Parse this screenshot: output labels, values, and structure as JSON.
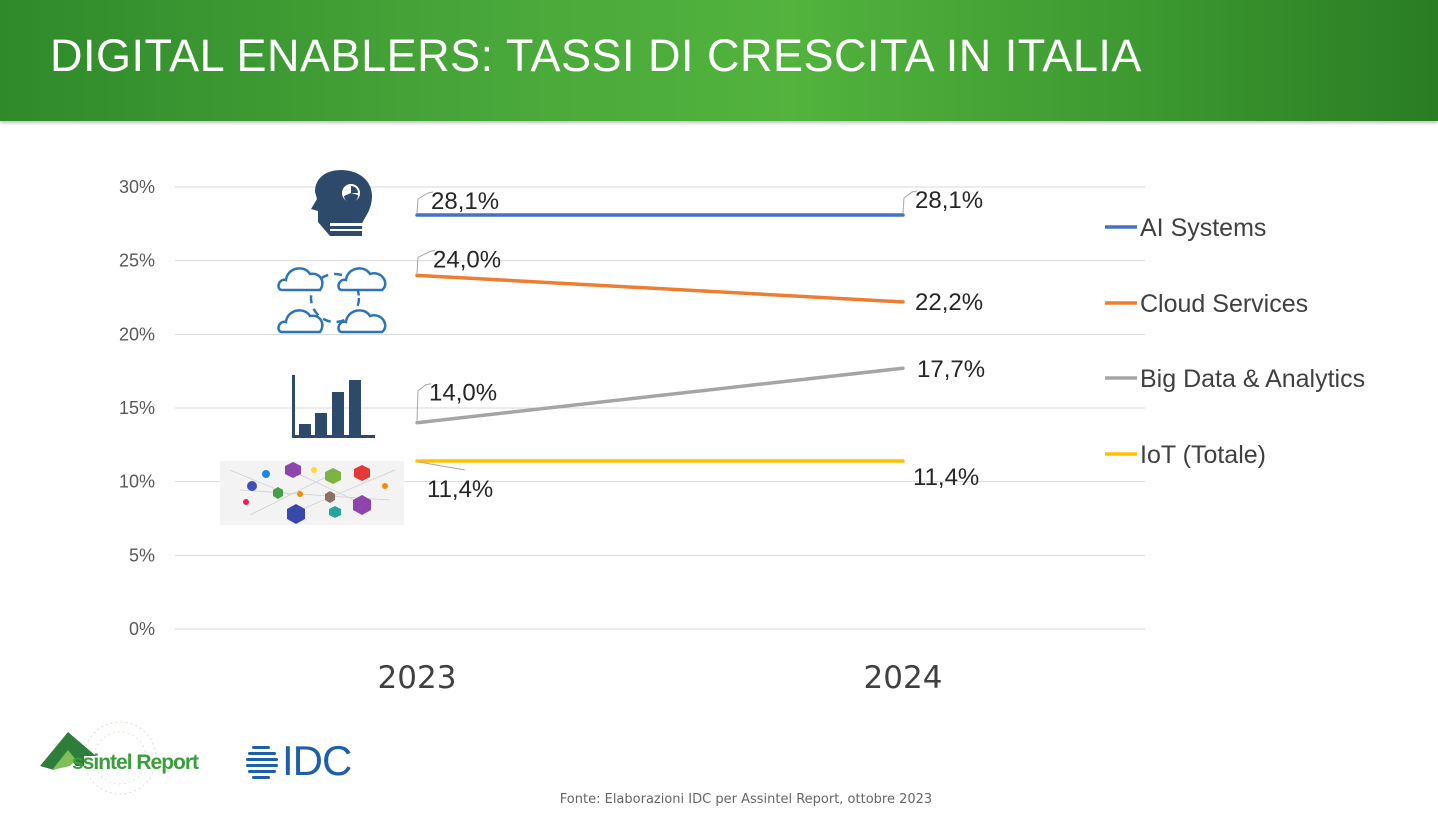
{
  "header": {
    "title": "DIGITAL ENABLERS: TASSI DI CRESCITA IN ITALIA"
  },
  "chart_data": {
    "type": "line",
    "categories": [
      "2023",
      "2024"
    ],
    "y_ticks": [
      "0%",
      "5%",
      "10%",
      "15%",
      "20%",
      "25%",
      "30%"
    ],
    "ylim": [
      0,
      30
    ],
    "grid": true,
    "legend_position": "right",
    "series": [
      {
        "name": "AI Systems",
        "values": [
          28.1,
          28.1
        ],
        "labels": [
          "28,1%",
          "28,1%"
        ],
        "color": "#4472c4",
        "icon": "ai-head-icon"
      },
      {
        "name": "Cloud Services",
        "values": [
          24.0,
          22.2
        ],
        "labels": [
          "24,0%",
          "22,2%"
        ],
        "color": "#ed7d31",
        "icon": "cloud-icon"
      },
      {
        "name": "Big Data & Analytics",
        "values": [
          14.0,
          17.7
        ],
        "labels": [
          "14,0%",
          "17,7%"
        ],
        "color": "#a5a5a5",
        "icon": "bar-chart-icon"
      },
      {
        "name": "IoT (Totale)",
        "values": [
          11.4,
          11.4
        ],
        "labels": [
          "11,4%",
          "11,4%"
        ],
        "color": "#ffc000",
        "icon": "iot-network-icon"
      }
    ]
  },
  "footer": {
    "source": "Fonte: Elaborazioni IDC per Assintel Report, ottobre 2023",
    "logo_assintel": "ssintel Report",
    "logo_idc": "IDC"
  }
}
